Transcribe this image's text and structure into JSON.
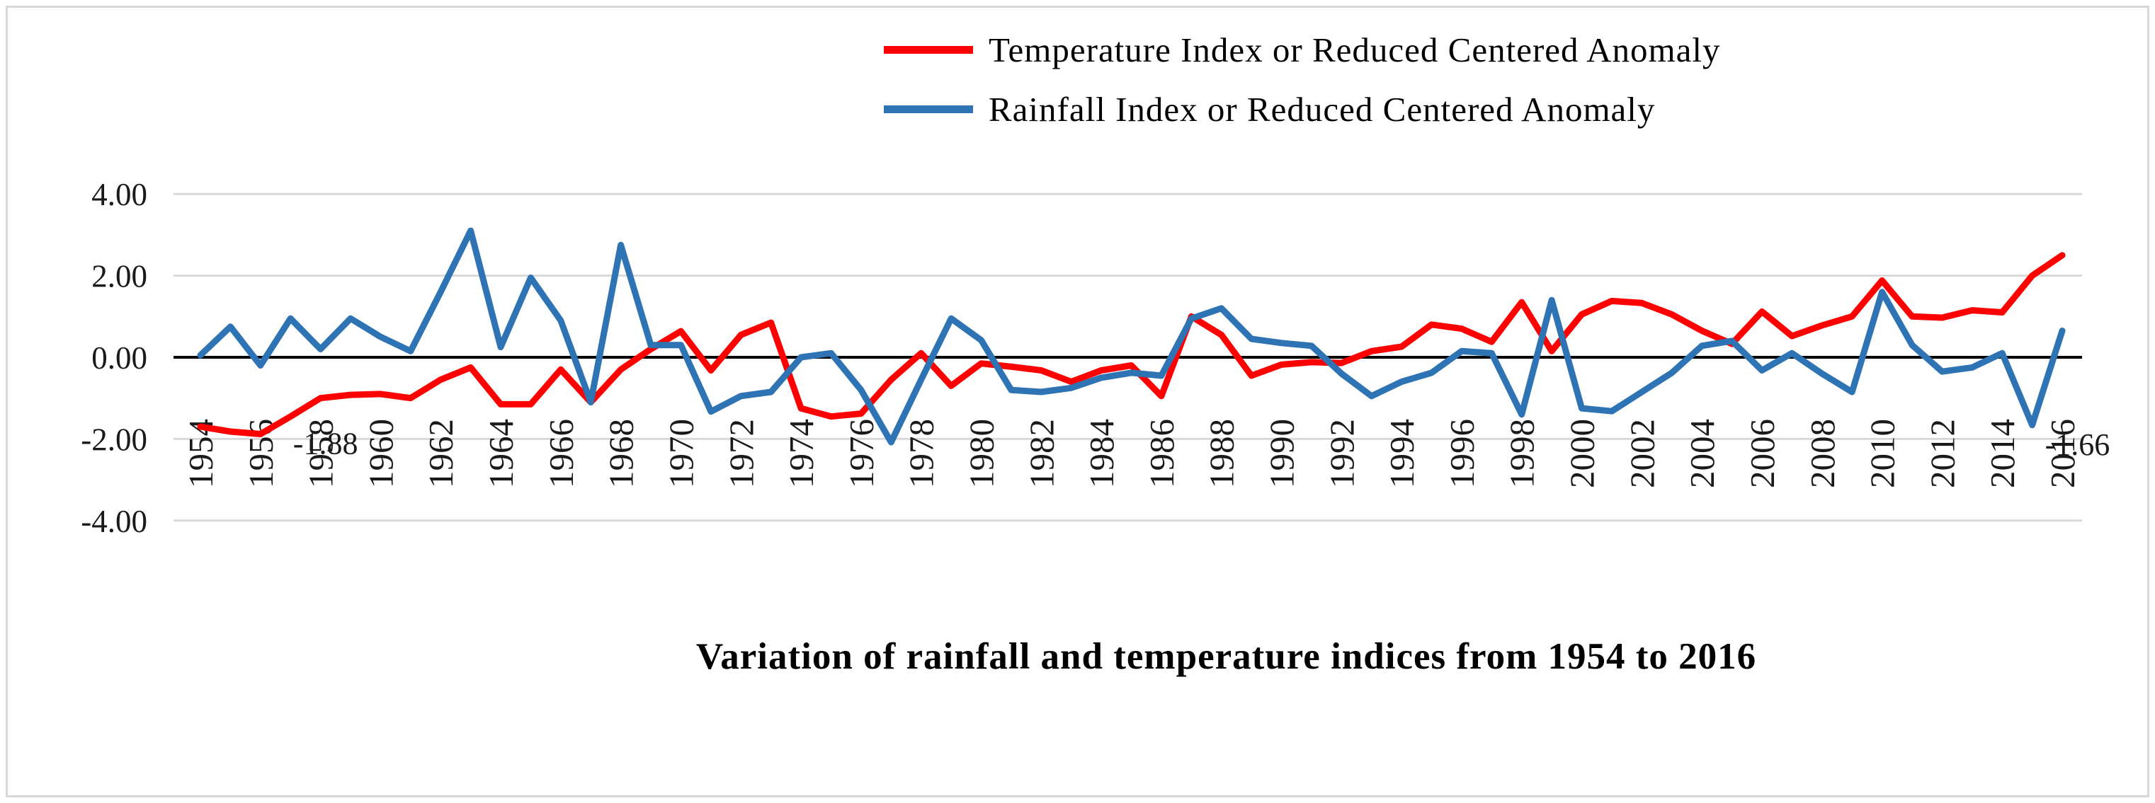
{
  "title": "Variation of rainfall and temperature indices from 1954 to 2016",
  "legend": [
    {
      "label": "Temperature Index or Reduced Centered Anomaly",
      "color": "#ff0000"
    },
    {
      "label": "Rainfall Index or Reduced Centered Anomaly",
      "color": "#2e74b5"
    }
  ],
  "colors": {
    "grid": "#d9d9d9",
    "axis": "#000000",
    "temperature": "#ff0000",
    "rainfall": "#2e74b5"
  },
  "chart_data": {
    "type": "line",
    "title": "Variation of rainfall and temperature indices from 1954 to 2016",
    "xlabel": "",
    "ylabel": "",
    "ylim": [
      -4,
      4
    ],
    "yticks": [
      "4.00",
      "2.00",
      "0.00",
      "-2.00",
      "-4.00"
    ],
    "ytick_values": [
      4,
      2,
      0,
      -2,
      -4
    ],
    "grid": true,
    "legend_position": "top-center",
    "x": [
      1954,
      1955,
      1956,
      1957,
      1958,
      1959,
      1960,
      1961,
      1962,
      1963,
      1964,
      1965,
      1966,
      1967,
      1968,
      1969,
      1970,
      1971,
      1972,
      1973,
      1974,
      1975,
      1976,
      1977,
      1978,
      1979,
      1980,
      1981,
      1982,
      1983,
      1984,
      1985,
      1986,
      1987,
      1988,
      1989,
      1990,
      1991,
      1992,
      1993,
      1994,
      1995,
      1996,
      1997,
      1998,
      1999,
      2000,
      2001,
      2002,
      2003,
      2004,
      2005,
      2006,
      2007,
      2008,
      2009,
      2010,
      2011,
      2012,
      2013,
      2014,
      2015,
      2016
    ],
    "xtick_years": [
      1954,
      1956,
      1958,
      1960,
      1962,
      1964,
      1966,
      1968,
      1970,
      1972,
      1974,
      1976,
      1978,
      1980,
      1982,
      1984,
      1986,
      1988,
      1990,
      1992,
      1994,
      1996,
      1998,
      2000,
      2002,
      2004,
      2006,
      2008,
      2010,
      2012,
      2014,
      2016
    ],
    "series": [
      {
        "name": "Temperature Index or Reduced Centered Anomaly",
        "color": "#ff0000",
        "values": [
          -1.7,
          -1.82,
          -1.88,
          -1.45,
          -1.0,
          -0.92,
          -0.9,
          -1.0,
          -0.55,
          -0.25,
          -1.15,
          -1.15,
          -0.3,
          -1.1,
          -0.3,
          0.2,
          0.64,
          -0.32,
          0.55,
          0.85,
          -1.25,
          -1.45,
          -1.38,
          -0.55,
          0.1,
          -0.7,
          -0.15,
          -0.23,
          -0.32,
          -0.6,
          -0.32,
          -0.2,
          -0.95,
          1.0,
          0.55,
          -0.45,
          -0.18,
          -0.12,
          -0.14,
          0.15,
          0.26,
          0.8,
          0.7,
          0.38,
          1.35,
          0.15,
          1.05,
          1.38,
          1.33,
          1.05,
          0.65,
          0.33,
          1.12,
          0.52,
          0.78,
          1.0,
          1.88,
          1.0,
          0.97,
          1.15,
          1.1,
          2.0,
          2.5
        ]
      },
      {
        "name": "Rainfall Index or Reduced Centered Anomaly",
        "color": "#2e74b5",
        "values": [
          0.05,
          0.75,
          -0.2,
          0.95,
          0.2,
          0.95,
          0.5,
          0.15,
          1.6,
          3.1,
          0.25,
          1.95,
          0.9,
          -1.1,
          2.75,
          0.3,
          0.3,
          -1.33,
          -0.95,
          -0.85,
          0.0,
          0.1,
          -0.8,
          -2.08,
          -0.55,
          0.95,
          0.42,
          -0.8,
          -0.85,
          -0.75,
          -0.5,
          -0.38,
          -0.45,
          0.95,
          1.2,
          0.45,
          0.35,
          0.28,
          -0.4,
          -0.95,
          -0.6,
          -0.38,
          0.15,
          0.1,
          -1.4,
          1.4,
          -1.25,
          -1.32,
          -0.85,
          -0.38,
          0.28,
          0.4,
          -0.32,
          0.1,
          -0.4,
          -0.85,
          1.6,
          0.3,
          -0.35,
          -0.25,
          0.1,
          -1.66,
          0.65
        ]
      }
    ],
    "data_labels": [
      {
        "text": "-1.88",
        "series": "temperature",
        "year": 1956
      },
      {
        "text": "-1.66",
        "series": "rainfall",
        "year": 2015
      }
    ]
  }
}
